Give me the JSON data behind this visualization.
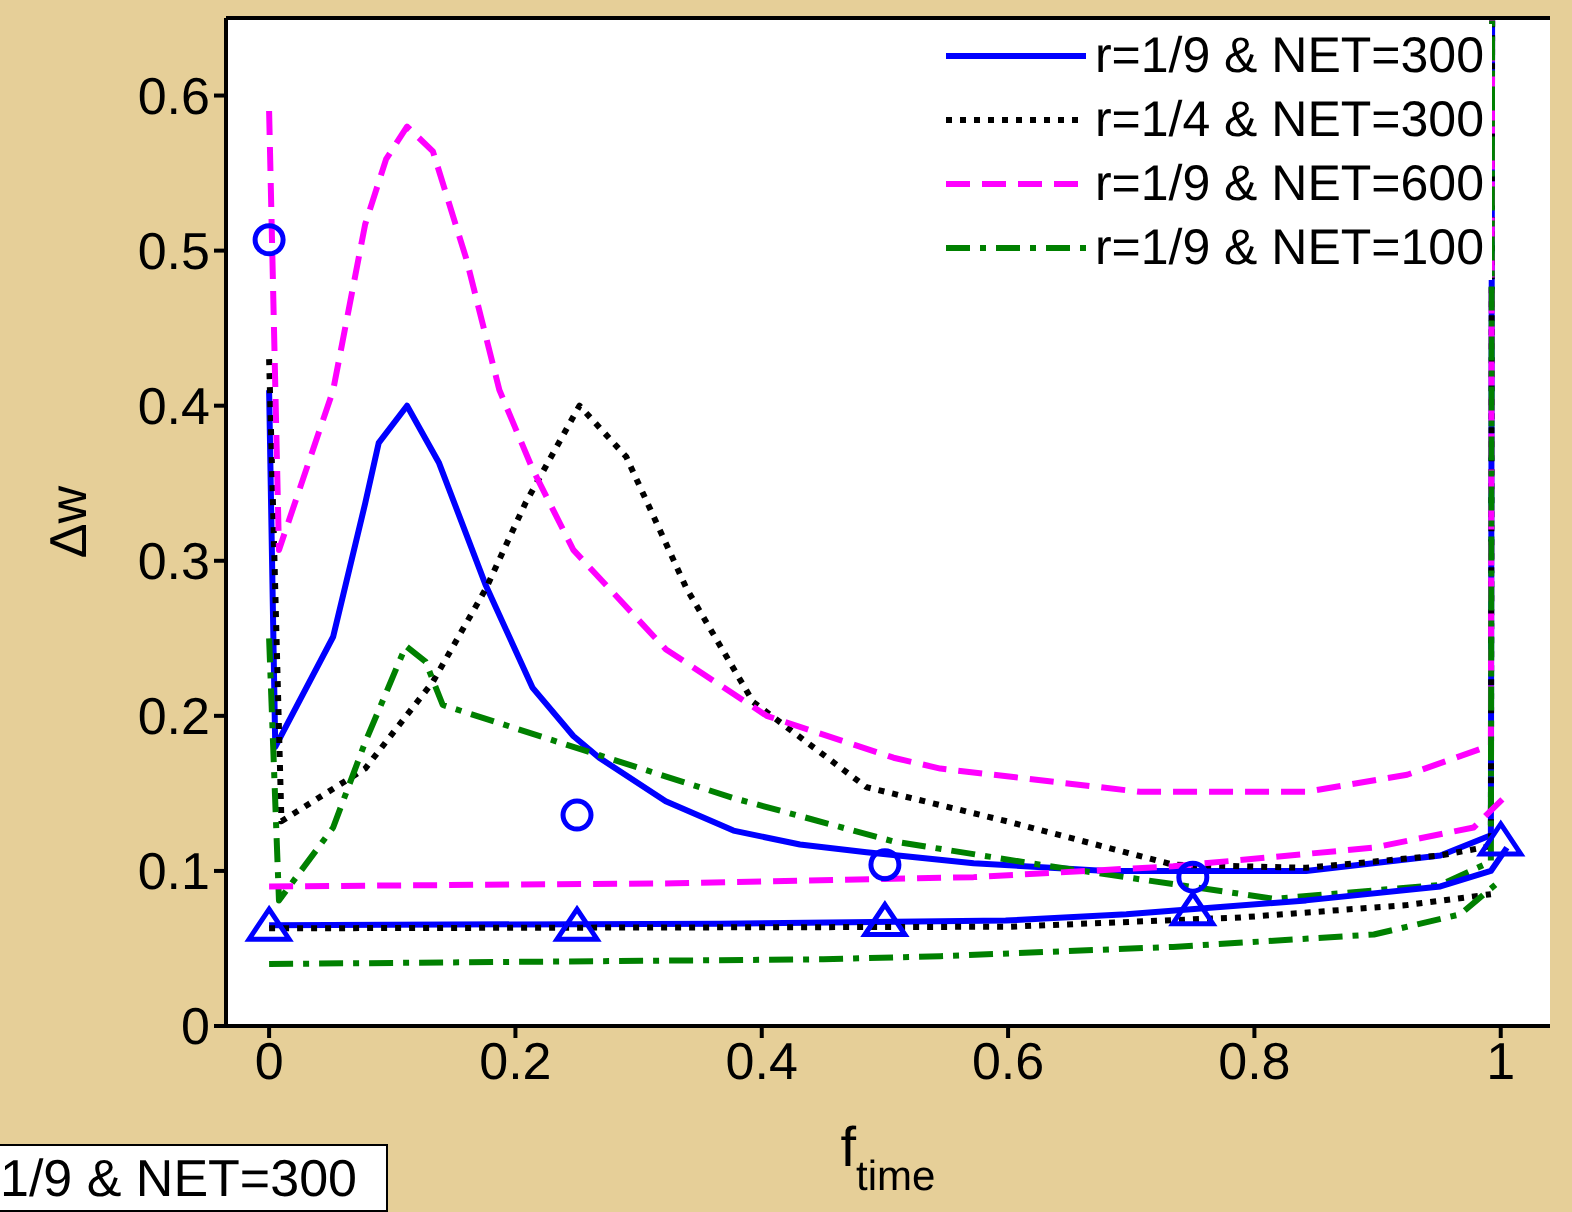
{
  "chart_data": {
    "type": "line",
    "xlabel": "f$_{time}$",
    "ylabel": "Δw",
    "xlim": [
      -0.035,
      1.04
    ],
    "ylim": [
      0,
      0.65
    ],
    "xticks": [
      0,
      0.2,
      0.4,
      0.6,
      0.8,
      1
    ],
    "yticks": [
      0,
      0.1,
      0.2,
      0.3,
      0.4,
      0.5,
      0.6
    ],
    "grid": false,
    "legend": "top right",
    "marker": "none",
    "annotations": [
      "1/9 & NET=300"
    ],
    "series": [
      {
        "name": "r=1/9 & NET=300",
        "color": "#0000ff",
        "line_style": "solid",
        "x": [
          0,
          0.005,
          0.052,
          0.078,
          0.089,
          0.112,
          0.138,
          0.176,
          0.214,
          0.247,
          0.268,
          0.322,
          0.377,
          0.431,
          0.485,
          0.572,
          0.68,
          0.842,
          0.951,
          0.992,
          0.993
        ],
        "values": [
          0.41,
          0.18,
          0.251,
          0.337,
          0.376,
          0.4,
          0.363,
          0.284,
          0.218,
          0.187,
          0.173,
          0.145,
          0.126,
          0.117,
          0.112,
          0.105,
          0.1,
          0.1,
          0.11,
          0.123,
          0.65
        ]
      },
      {
        "name": "r=1/4 & NET=300",
        "color": "#000000",
        "line_style": "dotted",
        "x": [
          0,
          0.01,
          0.078,
          0.133,
          0.176,
          0.208,
          0.252,
          0.29,
          0.339,
          0.393,
          0.485,
          0.599,
          0.734,
          0.842,
          0.951,
          0.992,
          0.993
        ],
        "values": [
          0.43,
          0.132,
          0.166,
          0.222,
          0.282,
          0.337,
          0.4,
          0.367,
          0.282,
          0.209,
          0.154,
          0.132,
          0.104,
          0.102,
          0.11,
          0.116,
          0.65
        ]
      },
      {
        "name": "r=1/9 & NET=600",
        "color": "#ff00ff",
        "line_style": "dashed",
        "x": [
          0,
          0.008,
          0.052,
          0.078,
          0.095,
          0.112,
          0.133,
          0.16,
          0.187,
          0.214,
          0.247,
          0.322,
          0.404,
          0.507,
          0.545,
          0.707,
          0.842,
          0.924,
          0.992,
          0.993
        ],
        "values": [
          0.59,
          0.307,
          0.41,
          0.517,
          0.559,
          0.58,
          0.564,
          0.495,
          0.41,
          0.359,
          0.307,
          0.243,
          0.2,
          0.173,
          0.166,
          0.151,
          0.151,
          0.162,
          0.181,
          0.65
        ]
      },
      {
        "name": "r=1/9 & NET=100",
        "color": "#008000",
        "line_style": "dashdot",
        "x": [
          0,
          0.008,
          0.052,
          0.078,
          0.111,
          0.127,
          0.141,
          0.247,
          0.377,
          0.507,
          0.626,
          0.816,
          0.951,
          0.992,
          0.993
        ],
        "values": [
          0.25,
          0.081,
          0.128,
          0.183,
          0.245,
          0.235,
          0.207,
          0.18,
          0.147,
          0.119,
          0.104,
          0.082,
          0.091,
          0.106,
          0.65
        ]
      },
      {
        "color": "#0000ff",
        "line_style": "solid",
        "x": [
          0,
          0.366,
          0.598,
          0.696,
          0.842,
          0.951,
          0.992,
          1.005
        ],
        "values": [
          0.065,
          0.066,
          0.068,
          0.072,
          0.081,
          0.09,
          0.1,
          0.115
        ]
      },
      {
        "color": "#000000",
        "line_style": "dotted",
        "x": [
          0,
          0.6,
          0.789,
          0.924,
          0.992
        ],
        "values": [
          0.063,
          0.064,
          0.07,
          0.078,
          0.085
        ]
      },
      {
        "color": "#ff00ff",
        "line_style": "dashed",
        "x": [
          0,
          0.33,
          0.572,
          0.734,
          0.897,
          0.978,
          1.005
        ],
        "values": [
          0.09,
          0.092,
          0.096,
          0.103,
          0.115,
          0.128,
          0.149
        ]
      },
      {
        "color": "#008000",
        "line_style": "dashdot",
        "x": [
          0,
          0.45,
          0.545,
          0.734,
          0.897,
          0.967,
          1.0
        ],
        "values": [
          0.04,
          0.043,
          0.045,
          0.051,
          0.059,
          0.072,
          0.094
        ]
      },
      {
        "type": "scatter",
        "color": "#0000ff",
        "marker": "circle",
        "x": [
          0,
          0.25,
          0.5,
          0.75
        ],
        "values": [
          0.507,
          0.136,
          0.104,
          0.096
        ]
      },
      {
        "type": "scatter",
        "color": "#0000ff",
        "marker": "triangle",
        "x": [
          0,
          0.25,
          0.5,
          0.75,
          1
        ],
        "values": [
          0.065,
          0.065,
          0.068,
          0.075,
          0.12
        ]
      }
    ]
  }
}
